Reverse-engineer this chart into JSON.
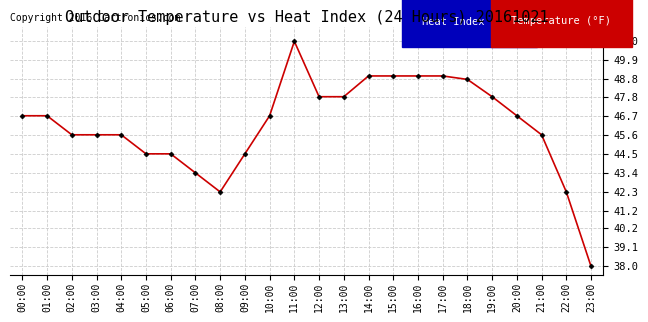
{
  "title": "Outdoor Temperature vs Heat Index (24 Hours) 20161021",
  "copyright": "Copyright 2016 Cartronics.com",
  "hours": [
    "00:00",
    "01:00",
    "02:00",
    "03:00",
    "04:00",
    "05:00",
    "06:00",
    "07:00",
    "08:00",
    "09:00",
    "10:00",
    "11:00",
    "12:00",
    "13:00",
    "14:00",
    "15:00",
    "16:00",
    "17:00",
    "18:00",
    "19:00",
    "20:00",
    "21:00",
    "22:00",
    "23:00"
  ],
  "temperature": [
    46.7,
    46.7,
    45.6,
    45.6,
    45.6,
    44.5,
    44.5,
    43.4,
    42.3,
    44.5,
    46.7,
    51.0,
    47.8,
    47.8,
    49.0,
    49.0,
    49.0,
    49.0,
    48.8,
    47.8,
    46.7,
    45.6,
    42.3,
    38.0
  ],
  "heat_index": [
    46.7,
    46.7,
    45.6,
    45.6,
    45.6,
    44.5,
    44.5,
    43.4,
    42.3,
    44.5,
    46.7,
    51.0,
    47.8,
    47.8,
    49.0,
    49.0,
    49.0,
    49.0,
    48.8,
    47.8,
    46.7,
    45.6,
    42.3,
    38.0
  ],
  "temp_color": "#cc0000",
  "heat_color": "#0000bb",
  "ylim_min": 37.5,
  "ylim_max": 51.8,
  "yticks": [
    38.0,
    39.1,
    40.2,
    41.2,
    42.3,
    43.4,
    44.5,
    45.6,
    46.7,
    47.8,
    48.8,
    49.9,
    51.0
  ],
  "background_color": "#ffffff",
  "grid_color": "#cccccc",
  "title_fontsize": 11,
  "legend_heat_label": "Heat Index (°F)",
  "legend_temp_label": "Temperature (°F)"
}
